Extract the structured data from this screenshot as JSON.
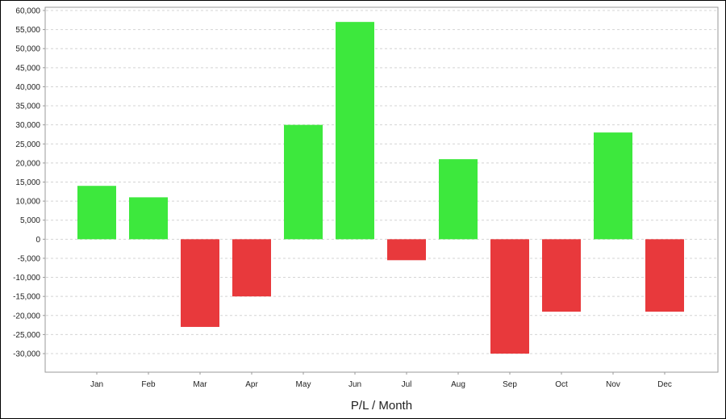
{
  "chart_data": {
    "type": "bar",
    "xlabel": "P/L / Month",
    "categories": [
      "Jan",
      "Feb",
      "Mar",
      "Apr",
      "May",
      "Jun",
      "Jul",
      "Aug",
      "Sep",
      "Oct",
      "Nov",
      "Dec"
    ],
    "values": [
      14000,
      11000,
      -23000,
      -15000,
      30000,
      57000,
      -5500,
      21000,
      -30000,
      -19000,
      28000,
      -19000
    ],
    "ylim": [
      -35000,
      60000
    ],
    "yticks": [
      -30000,
      -25000,
      -20000,
      -15000,
      -10000,
      -5000,
      0,
      5000,
      10000,
      15000,
      20000,
      25000,
      30000,
      35000,
      40000,
      45000,
      50000,
      55000,
      60000
    ],
    "ytick_labels": [
      "-30,000",
      "-25,000",
      "-20,000",
      "-15,000",
      "-10,000",
      "-5,000",
      "0",
      "5,000",
      "10,000",
      "15,000",
      "20,000",
      "25,000",
      "30,000",
      "35,000",
      "40,000",
      "45,000",
      "50,000",
      "55,000",
      "60,000"
    ],
    "grid": true,
    "colors": {
      "positive": "#3de83d",
      "negative": "#e8393c",
      "grid": "#d4d4d4",
      "axis": "#999999"
    }
  }
}
